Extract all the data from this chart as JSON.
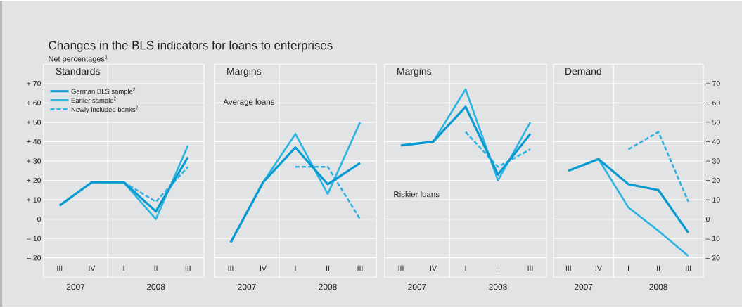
{
  "chart_data": [
    {
      "type": "line",
      "title": "Standards",
      "categories": [
        "III",
        "IV",
        "I",
        "II",
        "III"
      ],
      "ylim": [
        -30,
        80
      ],
      "yticks": [
        {
          "value": -20,
          "label": "– 20"
        },
        {
          "value": -10,
          "label": "– 10"
        },
        0,
        {
          "value": 10,
          "label": "+ 10"
        },
        {
          "value": 20,
          "label": "+ 20"
        },
        {
          "value": 30,
          "label": "+ 30"
        },
        {
          "value": 40,
          "label": "+ 40"
        },
        {
          "value": 50,
          "label": "+ 50"
        },
        {
          "value": 60,
          "label": "+ 60"
        },
        {
          "value": 70,
          "label": "+ 70"
        }
      ],
      "grid": "y",
      "legend": "top left",
      "series": [
        {
          "name": "German BLS sample$^{2}$",
          "color": "#0a9ad2",
          "values": [
            7,
            19,
            19,
            4,
            32
          ]
        },
        {
          "name": "Earlier sample$^{2}$",
          "color": "#2bb3e1",
          "values": [
            7,
            19,
            19,
            0,
            38
          ]
        },
        {
          "name": "Newly included banks$^{2}$",
          "color": "#2bb3e1",
          "line_style": "dashed",
          "values": [
            null,
            null,
            19,
            9,
            27
          ]
        }
      ],
      "annotations": [
        "Changes in the BLS indicators for loans to enterprises",
        "Net percentages$^{1}$",
        "2007",
        "2008"
      ]
    },
    {
      "type": "line",
      "title": "Margins",
      "categories": [
        "III",
        "IV",
        "I",
        "II",
        "III"
      ],
      "ylim": [
        -30,
        80
      ],
      "yticks": [
        -20,
        -10,
        0,
        10,
        20,
        30,
        40,
        50,
        60,
        70
      ],
      "grid": "y",
      "tick_labels": "x",
      "series": [
        {
          "color": "#0a9ad2",
          "values": [
            -12,
            19,
            37,
            18,
            29
          ]
        },
        {
          "color": "#2bb3e1",
          "values": [
            -12,
            19,
            44,
            13,
            50
          ]
        },
        {
          "color": "#2bb3e1",
          "line_style": "dashed",
          "values": [
            null,
            null,
            27,
            27,
            0
          ]
        }
      ],
      "annotations": [
        "Average loans",
        "2007",
        "2008"
      ]
    },
    {
      "type": "line",
      "title": "Margins",
      "categories": [
        "III",
        "IV",
        "I",
        "II",
        "III"
      ],
      "ylim": [
        -30,
        80
      ],
      "yticks": [
        -20,
        -10,
        0,
        10,
        20,
        30,
        40,
        50,
        60,
        70
      ],
      "grid": "y",
      "tick_labels": "x",
      "series": [
        {
          "color": "#0a9ad2",
          "values": [
            38,
            40,
            58,
            23,
            44
          ]
        },
        {
          "color": "#2bb3e1",
          "values": [
            38,
            40,
            67,
            20,
            50
          ]
        },
        {
          "color": "#2bb3e1",
          "line_style": "dashed",
          "values": [
            null,
            null,
            45,
            27,
            36
          ]
        }
      ],
      "annotations": [
        "Riskier loans",
        "2007",
        "2008"
      ]
    },
    {
      "type": "line",
      "title": "Demand",
      "categories": [
        "III",
        "IV",
        "I",
        "II",
        "III"
      ],
      "ylim": [
        -30,
        80
      ],
      "yticks": [
        {
          "value": -20,
          "label": "– 20"
        },
        {
          "value": -10,
          "label": "– 10"
        },
        0,
        {
          "value": 10,
          "label": "+ 10"
        },
        {
          "value": 20,
          "label": "+ 20"
        },
        {
          "value": 30,
          "label": "+ 30"
        },
        {
          "value": 40,
          "label": "+ 40"
        },
        {
          "value": 50,
          "label": "+ 50"
        },
        {
          "value": 60,
          "label": "+ 60"
        },
        {
          "value": 70,
          "label": "+ 70"
        }
      ],
      "grid": "y",
      "series": [
        {
          "color": "#0a9ad2",
          "values": [
            25,
            31,
            18,
            15,
            -7
          ]
        },
        {
          "color": "#2bb3e1",
          "values": [
            25,
            31,
            6,
            -6,
            -19
          ]
        },
        {
          "color": "#2bb3e1",
          "line_style": "dashed",
          "values": [
            null,
            null,
            36,
            45,
            9
          ]
        }
      ],
      "annotations": [
        "2007",
        "2008"
      ]
    }
  ]
}
